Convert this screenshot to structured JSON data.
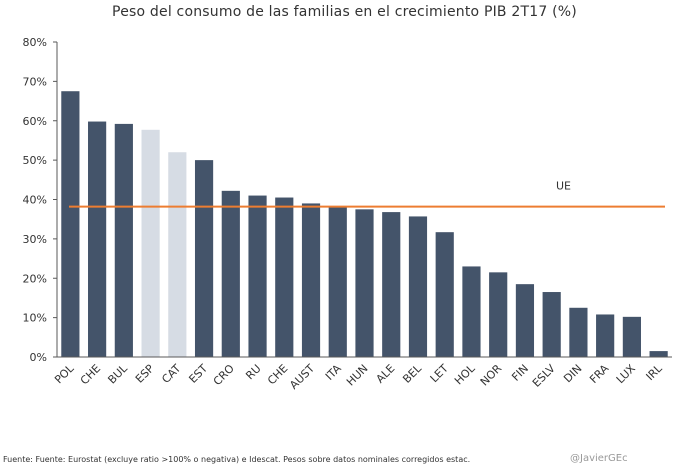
{
  "chart_data": {
    "type": "bar",
    "title": "Peso del consumo de las familias en el crecimiento PIB 2T17 (%)",
    "categories": [
      "POL",
      "CHE",
      "BUL",
      "ESP",
      "CAT",
      "EST",
      "CRO",
      "RU",
      "CHE",
      "AUST",
      "ITA",
      "HUN",
      "ALE",
      "BEL",
      "LET",
      "HOL",
      "NOR",
      "FIN",
      "ESLV",
      "DIN",
      "FRA",
      "LUX",
      "IRL"
    ],
    "values": [
      67.5,
      59.8,
      59.2,
      57.7,
      52.0,
      50.0,
      42.2,
      41.0,
      40.5,
      39.0,
      38.0,
      37.5,
      36.8,
      35.7,
      31.7,
      23.0,
      21.5,
      18.5,
      16.5,
      12.5,
      10.8,
      10.2,
      1.5
    ],
    "highlight": [
      false,
      false,
      false,
      true,
      true,
      false,
      false,
      false,
      false,
      false,
      false,
      false,
      false,
      false,
      false,
      false,
      false,
      false,
      false,
      false,
      false,
      false,
      false
    ],
    "ylim": [
      0,
      80
    ],
    "yticks": [
      "0%",
      "10%",
      "20%",
      "30%",
      "40%",
      "50%",
      "60%",
      "70%",
      "80%"
    ],
    "reference_line": {
      "label": "UE",
      "value": 38.2
    },
    "colors": {
      "bar": "#44546a",
      "highlight": "#d6dce4",
      "line": "#ed7d31"
    },
    "xlabel": "",
    "ylabel": ""
  },
  "footer": {
    "source": "Fuente: Fuente: Eurostat (excluye ratio >100% o negativa) e Idescat. Pesos sobre datos nominales corregidos estac.",
    "credit": "@JavierGEc"
  }
}
